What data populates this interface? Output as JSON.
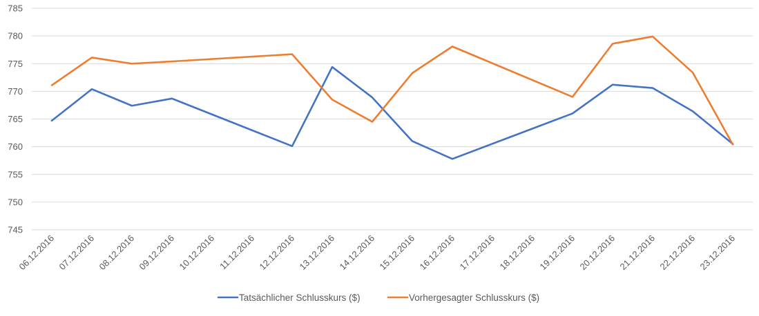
{
  "chart_data": {
    "type": "line",
    "title": "",
    "xlabel": "",
    "ylabel": "",
    "ylim": [
      745,
      785
    ],
    "yticks": [
      745,
      750,
      755,
      760,
      765,
      770,
      775,
      780,
      785
    ],
    "grid": true,
    "legend": "bottom",
    "categories": [
      "06.12.2016",
      "07.12.2016",
      "08.12.2016",
      "09.12.2016",
      "10.12.2016",
      "11.12.2016",
      "12.12.2016",
      "13.12.2016",
      "14.12.2016",
      "15.12.2016",
      "16.12.2016",
      "17.12.2016",
      "18.12.2016",
      "19.12.2016",
      "20.12.2016",
      "21.12.2016",
      "22.12.2016",
      "23.12.2016"
    ],
    "series": [
      {
        "name": "Tatsächlicher Schlusskurs ($)",
        "color": "#4472C4",
        "values": [
          764.7,
          770.4,
          767.4,
          768.7,
          null,
          null,
          760.1,
          774.4,
          768.9,
          761.0,
          757.8,
          null,
          null,
          766.0,
          771.2,
          770.6,
          766.4,
          760.5
        ]
      },
      {
        "name": "Vorhergesagter Schlusskurs ($)",
        "color": "#ED7D31",
        "values": [
          771.1,
          776.1,
          775.0,
          775.4,
          null,
          null,
          776.7,
          768.5,
          764.5,
          773.3,
          778.1,
          null,
          null,
          769.0,
          778.6,
          779.9,
          773.4,
          760.4
        ]
      }
    ]
  }
}
